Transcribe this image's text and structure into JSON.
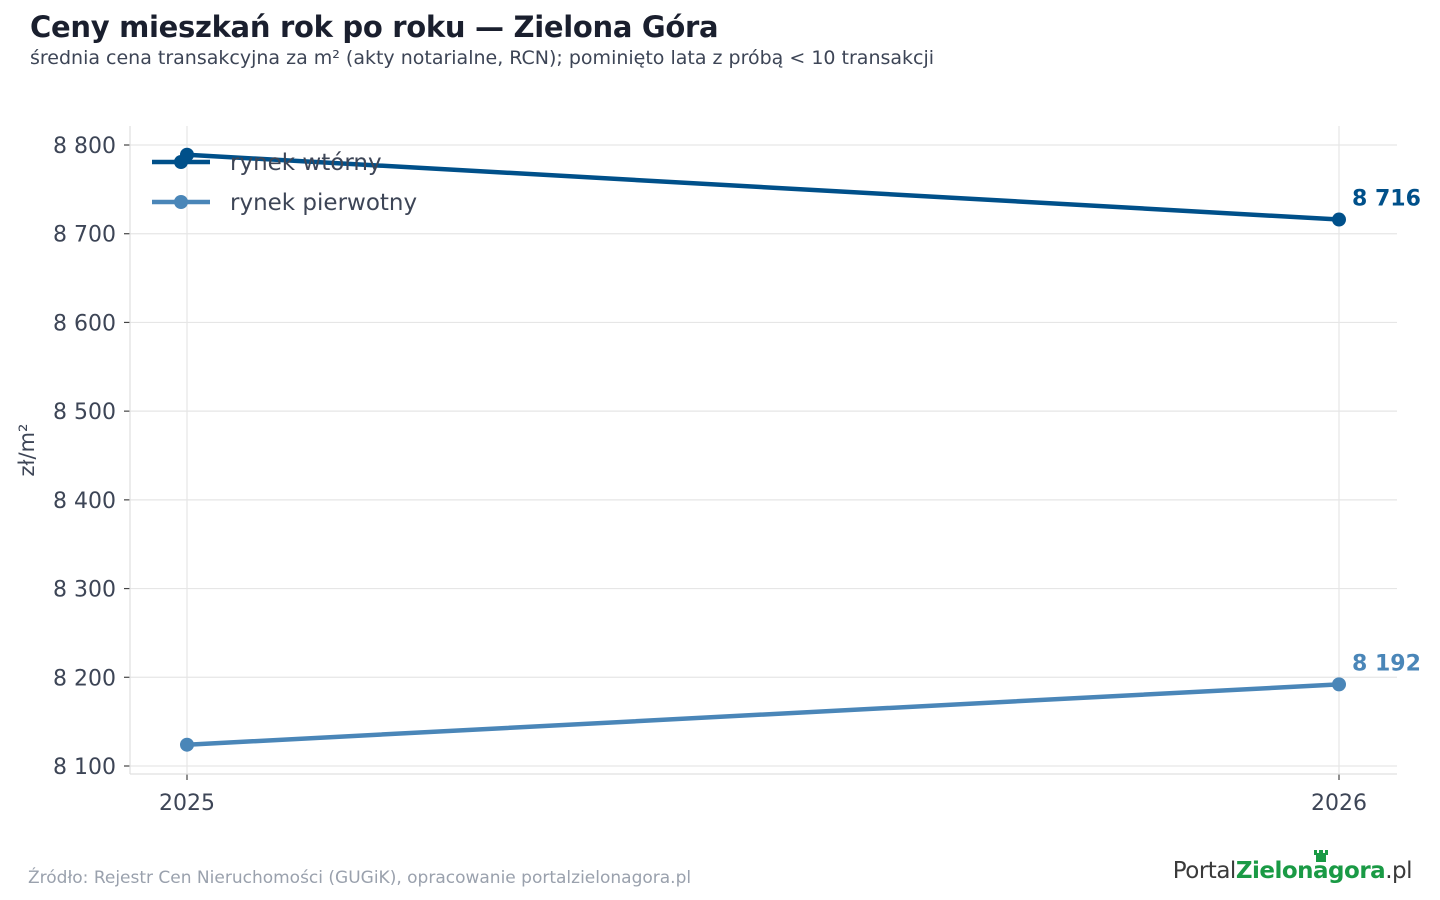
{
  "header": {
    "title": "Ceny mieszkań rok po roku — Zielona Góra",
    "subtitle": "średnia cena transakcyjna za m² (akty notarialne, RCN); pominięto lata z próbą < 10 transakcji"
  },
  "chart_data": {
    "type": "line",
    "x": [
      "2025",
      "2026"
    ],
    "ylabel": "zł/m²",
    "ylim": [
      8100,
      8800
    ],
    "yticks": [
      8100,
      8200,
      8300,
      8400,
      8500,
      8600,
      8700,
      8800
    ],
    "ytick_labels": [
      "8 100",
      "8 200",
      "8 300",
      "8 400",
      "8 500",
      "8 600",
      "8 700",
      "8 800"
    ],
    "grid": true,
    "legend_position": "top-left",
    "series": [
      {
        "name": "rynek wtórny",
        "values": [
          8789,
          8716
        ],
        "color": "#00508a",
        "end_label": "8 716"
      },
      {
        "name": "rynek pierwotny",
        "values": [
          8124,
          8192
        ],
        "color": "#4a86b8",
        "end_label": "8 192"
      }
    ]
  },
  "footer": {
    "source": "Źródło: Rejestr Cen Nieruchomości (GUGiK), opracowanie portalzielonagora.pl",
    "brand_part1": "Portal",
    "brand_part2": "Zielonagora",
    "brand_part3": ".pl"
  }
}
